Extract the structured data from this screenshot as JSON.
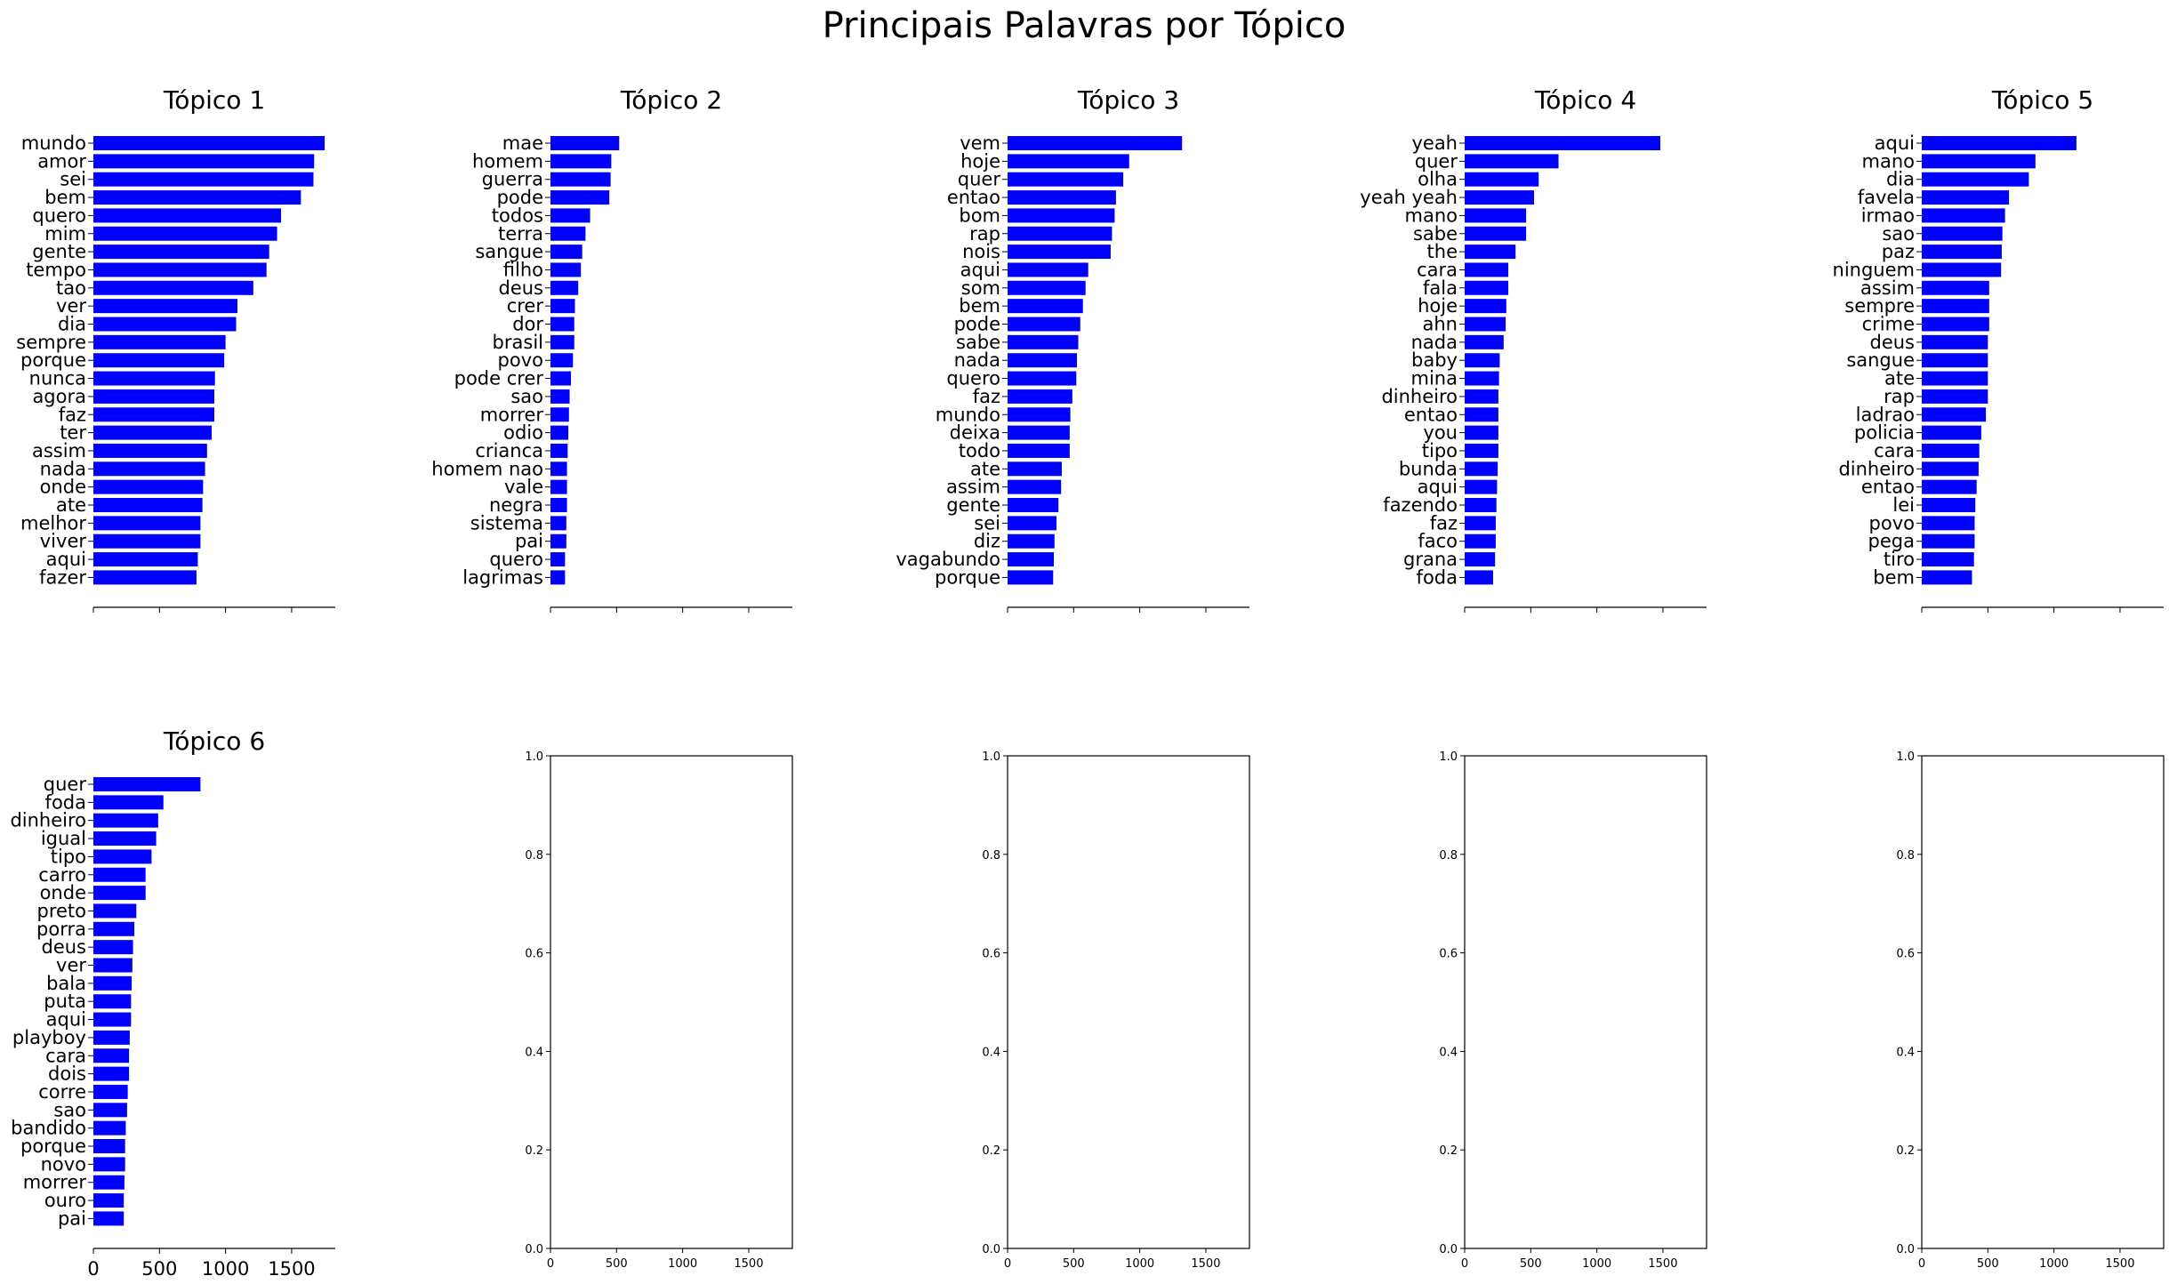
{
  "figure": {
    "title": "Principais Palavras por Tópico",
    "bar_color": "#0000ff"
  },
  "chart_data": [
    {
      "type": "bar",
      "orientation": "horizontal",
      "title": "Tópico 1",
      "xlim": [
        0,
        1830
      ],
      "xticks": [],
      "categories": [
        "mundo",
        "amor",
        "sei",
        "bem",
        "quero",
        "mim",
        "gente",
        "tempo",
        "tao",
        "ver",
        "dia",
        "sempre",
        "porque",
        "nunca",
        "agora",
        "faz",
        "ter",
        "assim",
        "nada",
        "onde",
        "ate",
        "melhor",
        "viver",
        "aqui",
        "fazer"
      ],
      "values": [
        1750,
        1670,
        1665,
        1570,
        1420,
        1390,
        1330,
        1310,
        1210,
        1090,
        1080,
        1000,
        990,
        920,
        915,
        915,
        895,
        860,
        845,
        830,
        825,
        810,
        810,
        790,
        780
      ]
    },
    {
      "type": "bar",
      "orientation": "horizontal",
      "title": "Tópico 2",
      "xlim": [
        0,
        1830
      ],
      "xticks": [],
      "categories": [
        "mae",
        "homem",
        "guerra",
        "pode",
        "todos",
        "terra",
        "sangue",
        "filho",
        "deus",
        "crer",
        "dor",
        "brasil",
        "povo",
        "pode crer",
        "sao",
        "morrer",
        "odio",
        "crianca",
        "homem nao",
        "vale",
        "negra",
        "sistema",
        "pai",
        "quero",
        "lagrimas"
      ],
      "values": [
        520,
        460,
        455,
        445,
        300,
        265,
        240,
        230,
        210,
        185,
        180,
        180,
        170,
        155,
        145,
        140,
        135,
        130,
        125,
        125,
        125,
        120,
        120,
        110,
        110
      ]
    },
    {
      "type": "bar",
      "orientation": "horizontal",
      "title": "Tópico 3",
      "xlim": [
        0,
        1830
      ],
      "xticks": [],
      "categories": [
        "vem",
        "hoje",
        "quer",
        "entao",
        "bom",
        "rap",
        "nois",
        "aqui",
        "som",
        "bem",
        "pode",
        "sabe",
        "nada",
        "quero",
        "faz",
        "mundo",
        "deixa",
        "todo",
        "ate",
        "assim",
        "gente",
        "sei",
        "diz",
        "vagabundo",
        "porque"
      ],
      "values": [
        1320,
        920,
        875,
        820,
        810,
        790,
        780,
        610,
        590,
        570,
        550,
        535,
        525,
        520,
        490,
        475,
        470,
        470,
        410,
        405,
        385,
        370,
        355,
        350,
        345
      ]
    },
    {
      "type": "bar",
      "orientation": "horizontal",
      "title": "Tópico 4",
      "xlim": [
        0,
        1830
      ],
      "xticks": [],
      "categories": [
        "yeah",
        "quer",
        "olha",
        "yeah yeah",
        "mano",
        "sabe",
        "the",
        "cara",
        "fala",
        "hoje",
        "ahn",
        "nada",
        "baby",
        "mina",
        "dinheiro",
        "entao",
        "you",
        "tipo",
        "bunda",
        "aqui",
        "fazendo",
        "faz",
        "faco",
        "grana",
        "foda"
      ],
      "values": [
        1480,
        710,
        560,
        525,
        465,
        465,
        385,
        330,
        330,
        315,
        310,
        295,
        265,
        260,
        255,
        255,
        255,
        255,
        250,
        245,
        240,
        235,
        235,
        230,
        215
      ]
    },
    {
      "type": "bar",
      "orientation": "horizontal",
      "title": "Tópico 5",
      "xlim": [
        0,
        1830
      ],
      "xticks": [],
      "categories": [
        "aqui",
        "mano",
        "dia",
        "favela",
        "irmao",
        "sao",
        "paz",
        "ninguem",
        "assim",
        "sempre",
        "crime",
        "deus",
        "sangue",
        "ate",
        "rap",
        "ladrao",
        "policia",
        "cara",
        "dinheiro",
        "entao",
        "lei",
        "povo",
        "pega",
        "tiro",
        "bem"
      ],
      "values": [
        1170,
        860,
        810,
        660,
        630,
        610,
        605,
        600,
        510,
        510,
        510,
        500,
        500,
        500,
        500,
        485,
        450,
        435,
        430,
        415,
        405,
        400,
        400,
        395,
        380
      ]
    },
    {
      "type": "bar",
      "orientation": "horizontal",
      "title": "Tópico 6",
      "xlim": [
        0,
        1830
      ],
      "xticks": [
        0,
        500,
        1000,
        1500
      ],
      "categories": [
        "quer",
        "foda",
        "dinheiro",
        "igual",
        "tipo",
        "carro",
        "onde",
        "preto",
        "porra",
        "deus",
        "ver",
        "bala",
        "puta",
        "aqui",
        "playboy",
        "cara",
        "dois",
        "corre",
        "sao",
        "bandido",
        "porque",
        "novo",
        "morrer",
        "ouro",
        "pai"
      ],
      "values": [
        810,
        530,
        490,
        475,
        440,
        395,
        395,
        325,
        310,
        300,
        295,
        290,
        285,
        285,
        275,
        270,
        270,
        260,
        255,
        245,
        240,
        240,
        235,
        230,
        230
      ]
    },
    {
      "type": "empty",
      "xlim": [
        0,
        1830
      ],
      "ylim": [
        0,
        1
      ],
      "xticks": [
        0,
        500,
        1000,
        1500
      ],
      "yticks": [
        "0.0",
        "0.2",
        "0.4",
        "0.6",
        "0.8",
        "1.0"
      ]
    },
    {
      "type": "empty",
      "xlim": [
        0,
        1830
      ],
      "ylim": [
        0,
        1
      ],
      "xticks": [
        0,
        500,
        1000,
        1500
      ],
      "yticks": [
        "0.0",
        "0.2",
        "0.4",
        "0.6",
        "0.8",
        "1.0"
      ]
    },
    {
      "type": "empty",
      "xlim": [
        0,
        1830
      ],
      "ylim": [
        0,
        1
      ],
      "xticks": [
        0,
        500,
        1000,
        1500
      ],
      "yticks": [
        "0.0",
        "0.2",
        "0.4",
        "0.6",
        "0.8",
        "1.0"
      ]
    },
    {
      "type": "empty",
      "xlim": [
        0,
        1830
      ],
      "ylim": [
        0,
        1
      ],
      "xticks": [
        0,
        500,
        1000,
        1500
      ],
      "yticks": [
        "0.0",
        "0.2",
        "0.4",
        "0.6",
        "0.8",
        "1.0"
      ]
    }
  ]
}
